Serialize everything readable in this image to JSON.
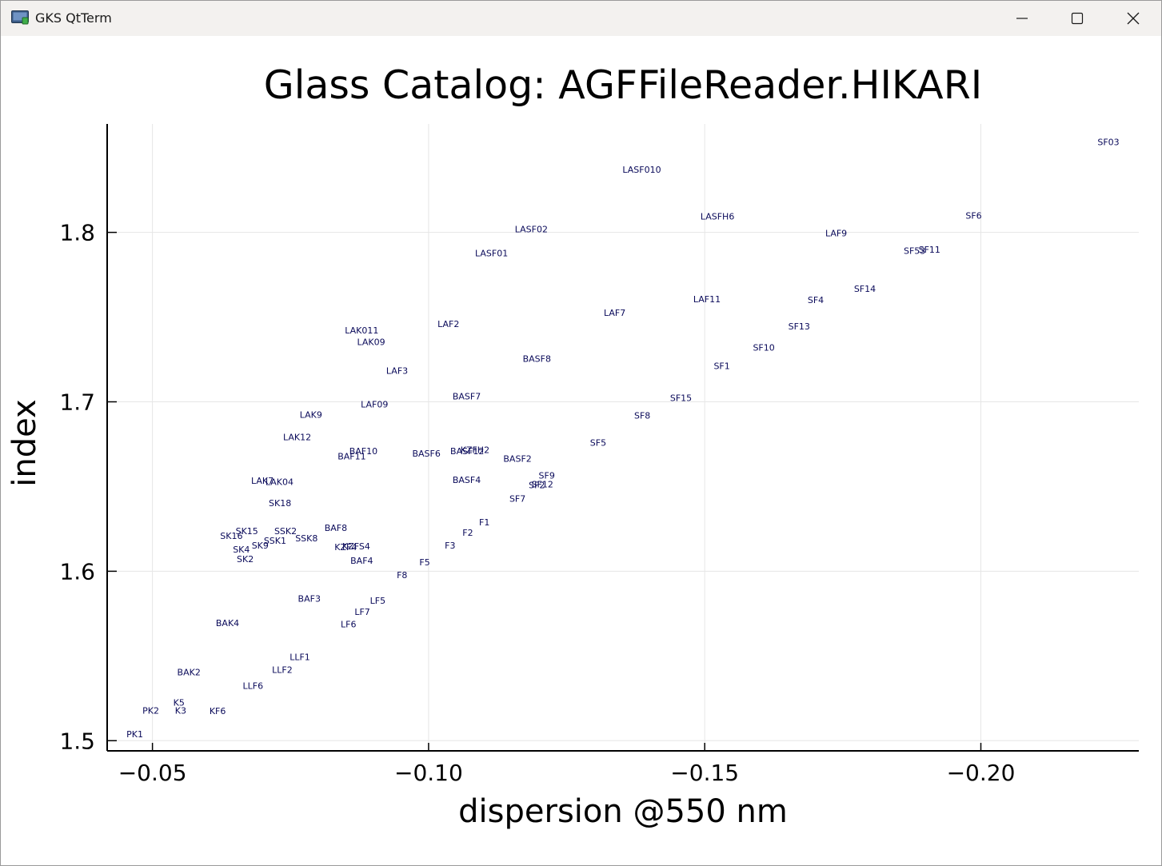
{
  "window": {
    "title": "GKS QtTerm",
    "app_icon": "gks-app-icon",
    "controls": [
      "minimize-icon",
      "maximize-icon",
      "close-icon"
    ]
  },
  "chart_data": {
    "type": "scatter",
    "title": "Glass Catalog: AGFFileReader.HIKARI",
    "xlabel": "dispersion @550 nm",
    "ylabel": "index",
    "xlim": [
      -0.0418,
      -0.2286
    ],
    "ylim": [
      1.494,
      1.864
    ],
    "x_ticks": [
      -0.05,
      -0.1,
      -0.15,
      -0.2
    ],
    "x_tick_labels": [
      "−0.05",
      "−0.10",
      "−0.15",
      "−0.20"
    ],
    "y_ticks": [
      1.5,
      1.6,
      1.7,
      1.8
    ],
    "y_tick_labels": [
      "1.5",
      "1.6",
      "1.7",
      "1.8"
    ],
    "grid": true,
    "marker": "text-label",
    "label_color": "#0a0a5a",
    "points": [
      {
        "label": "SF03",
        "x": -0.2231,
        "y": 1.8534
      },
      {
        "label": "LASF010",
        "x": -0.1386,
        "y": 1.837
      },
      {
        "label": "LASFH6",
        "x": -0.1523,
        "y": 1.8094
      },
      {
        "label": "SF6",
        "x": -0.1987,
        "y": 1.8099
      },
      {
        "label": "LASF02",
        "x": -0.1186,
        "y": 1.8019
      },
      {
        "label": "LAF9",
        "x": -0.1738,
        "y": 1.7995
      },
      {
        "label": "LASF01",
        "x": -0.1114,
        "y": 1.7878
      },
      {
        "label": "SF53",
        "x": -0.188,
        "y": 1.7893
      },
      {
        "label": "SF11",
        "x": -0.1907,
        "y": 1.7898
      },
      {
        "label": "SF14",
        "x": -0.179,
        "y": 1.7668
      },
      {
        "label": "LAF11",
        "x": -0.1504,
        "y": 1.7607
      },
      {
        "label": "SF4",
        "x": -0.1701,
        "y": 1.7602
      },
      {
        "label": "LAF7",
        "x": -0.1337,
        "y": 1.7527
      },
      {
        "label": "LAF2",
        "x": -0.1036,
        "y": 1.7461
      },
      {
        "label": "SF13",
        "x": -0.1671,
        "y": 1.7447
      },
      {
        "label": "LAK011",
        "x": -0.0879,
        "y": 1.7423
      },
      {
        "label": "LAK09",
        "x": -0.0896,
        "y": 1.7353
      },
      {
        "label": "SF10",
        "x": -0.1607,
        "y": 1.732
      },
      {
        "label": "BASF8",
        "x": -0.1196,
        "y": 1.7254
      },
      {
        "label": "SF1",
        "x": -0.1531,
        "y": 1.7212
      },
      {
        "label": "LAF3",
        "x": -0.0943,
        "y": 1.7184
      },
      {
        "label": "BASF7",
        "x": -0.1069,
        "y": 1.7033
      },
      {
        "label": "SF15",
        "x": -0.1457,
        "y": 1.7024
      },
      {
        "label": "LAF09",
        "x": -0.0902,
        "y": 1.6986
      },
      {
        "label": "SF8",
        "x": -0.1387,
        "y": 1.692
      },
      {
        "label": "LAK9",
        "x": -0.0787,
        "y": 1.6925
      },
      {
        "label": "LAK12",
        "x": -0.0762,
        "y": 1.6793
      },
      {
        "label": "SF5",
        "x": -0.1307,
        "y": 1.676
      },
      {
        "label": "KZFH2",
        "x": -0.1084,
        "y": 1.6718
      },
      {
        "label": "BASF12",
        "x": -0.107,
        "y": 1.6709
      },
      {
        "label": "BAF10",
        "x": -0.0882,
        "y": 1.6709
      },
      {
        "label": "BASF6",
        "x": -0.0996,
        "y": 1.6695
      },
      {
        "label": "BAF11",
        "x": -0.0861,
        "y": 1.668
      },
      {
        "label": "BASF2",
        "x": -0.1161,
        "y": 1.6666
      },
      {
        "label": "SF9",
        "x": -0.1214,
        "y": 1.6567
      },
      {
        "label": "LAK7",
        "x": -0.0699,
        "y": 1.6534
      },
      {
        "label": "LAK04",
        "x": -0.073,
        "y": 1.6529
      },
      {
        "label": "BASF4",
        "x": -0.1069,
        "y": 1.6539
      },
      {
        "label": "SF12",
        "x": -0.1206,
        "y": 1.6515
      },
      {
        "label": "SF2",
        "x": -0.1196,
        "y": 1.651
      },
      {
        "label": "SF7",
        "x": -0.1161,
        "y": 1.643
      },
      {
        "label": "SK18",
        "x": -0.0731,
        "y": 1.6402
      },
      {
        "label": "F1",
        "x": -0.1101,
        "y": 1.6289
      },
      {
        "label": "BAF8",
        "x": -0.0832,
        "y": 1.6256
      },
      {
        "label": "SK15",
        "x": -0.0671,
        "y": 1.6237
      },
      {
        "label": "SSK2",
        "x": -0.0741,
        "y": 1.6237
      },
      {
        "label": "F2",
        "x": -0.1071,
        "y": 1.6228
      },
      {
        "label": "SK16",
        "x": -0.0643,
        "y": 1.6209
      },
      {
        "label": "SSK1",
        "x": -0.0722,
        "y": 1.6181
      },
      {
        "label": "SSK8",
        "x": -0.0779,
        "y": 1.6195
      },
      {
        "label": "SK9",
        "x": -0.0695,
        "y": 1.6153
      },
      {
        "label": "KZFS4",
        "x": -0.0869,
        "y": 1.6148
      },
      {
        "label": "KZF4",
        "x": -0.085,
        "y": 1.6143
      },
      {
        "label": "F3",
        "x": -0.1039,
        "y": 1.6153
      },
      {
        "label": "SK4",
        "x": -0.0661,
        "y": 1.6129
      },
      {
        "label": "SK2",
        "x": -0.0668,
        "y": 1.6073
      },
      {
        "label": "BAF4",
        "x": -0.0879,
        "y": 1.6063
      },
      {
        "label": "F5",
        "x": -0.0993,
        "y": 1.6054
      },
      {
        "label": "F8",
        "x": -0.0952,
        "y": 1.5979
      },
      {
        "label": "BAF3",
        "x": -0.0784,
        "y": 1.5838
      },
      {
        "label": "LF5",
        "x": -0.0908,
        "y": 1.5828
      },
      {
        "label": "LF7",
        "x": -0.088,
        "y": 1.5762
      },
      {
        "label": "BAK4",
        "x": -0.0636,
        "y": 1.5696
      },
      {
        "label": "LF6",
        "x": -0.0855,
        "y": 1.5687
      },
      {
        "label": "LLF1",
        "x": -0.0767,
        "y": 1.5494
      },
      {
        "label": "LLF2",
        "x": -0.0735,
        "y": 1.5419
      },
      {
        "label": "BAK2",
        "x": -0.0566,
        "y": 1.5405
      },
      {
        "label": "LLF6",
        "x": -0.0682,
        "y": 1.5325
      },
      {
        "label": "K5",
        "x": -0.0548,
        "y": 1.5226
      },
      {
        "label": "PK2",
        "x": -0.0497,
        "y": 1.5179
      },
      {
        "label": "K3",
        "x": -0.0551,
        "y": 1.5179
      },
      {
        "label": "KF6",
        "x": -0.0618,
        "y": 1.5175
      },
      {
        "label": "PK1",
        "x": -0.0468,
        "y": 1.5038
      }
    ]
  }
}
